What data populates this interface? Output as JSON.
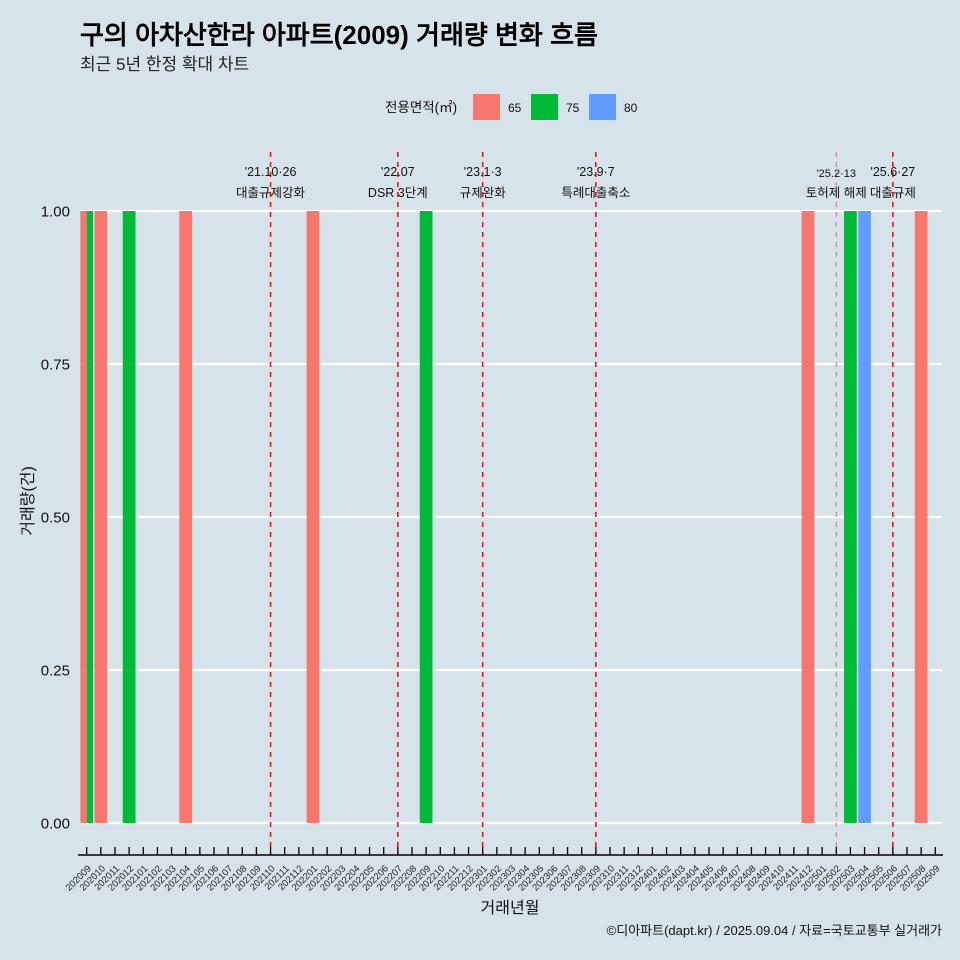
{
  "chart_data": {
    "type": "bar",
    "title": "구의 아차산한라 아파트(2009) 거래량 변화 흐름",
    "subtitle": "최근 5년 한정 확대 차트",
    "xlabel": "거래년월",
    "ylabel": "거래량(건)",
    "caption": "©디아파트(dapt.kr) / 2025.09.04 / 자료=국토교통부 실거래가",
    "legend_title": "전용면적(㎡)",
    "legend_position": "top",
    "grid": "horizontal",
    "ylim": [
      0,
      1
    ],
    "yticks": [
      0,
      0.25,
      0.5,
      0.75,
      1
    ],
    "ytick_labels": [
      "0.00",
      "0.25",
      "0.50",
      "0.75",
      "1.00"
    ],
    "categories": [
      "202009",
      "202010",
      "202011",
      "202012",
      "202101",
      "202102",
      "202103",
      "202104",
      "202105",
      "202106",
      "202107",
      "202108",
      "202109",
      "202110",
      "202111",
      "202112",
      "202201",
      "202202",
      "202203",
      "202204",
      "202205",
      "202206",
      "202207",
      "202208",
      "202209",
      "202210",
      "202211",
      "202212",
      "202301",
      "202302",
      "202303",
      "202304",
      "202305",
      "202306",
      "202307",
      "202308",
      "202309",
      "202310",
      "202311",
      "202312",
      "202401",
      "202402",
      "202403",
      "202404",
      "202405",
      "202406",
      "202407",
      "202408",
      "202409",
      "202410",
      "202411",
      "202412",
      "202501",
      "202502",
      "202503",
      "202504",
      "202505",
      "202506",
      "202507",
      "202508",
      "202509"
    ],
    "series": [
      {
        "name": "65",
        "color": "#F8766D",
        "points": [
          {
            "x": "202009",
            "y": 1
          },
          {
            "x": "202010",
            "y": 1
          },
          {
            "x": "202104",
            "y": 1
          },
          {
            "x": "202201",
            "y": 1
          },
          {
            "x": "202412",
            "y": 1
          },
          {
            "x": "202508",
            "y": 1
          }
        ]
      },
      {
        "name": "75",
        "color": "#00BA38",
        "points": [
          {
            "x": "202009",
            "y": 1
          },
          {
            "x": "202012",
            "y": 1
          },
          {
            "x": "202209",
            "y": 1
          },
          {
            "x": "202503",
            "y": 1
          }
        ]
      },
      {
        "name": "80",
        "color": "#619CFF",
        "points": [
          {
            "x": "202504",
            "y": 1
          }
        ]
      }
    ],
    "annotations": [
      {
        "x": "202110",
        "date": "'21.10·26",
        "label": "대출규제강화",
        "faint": false
      },
      {
        "x": "202207",
        "date": "'22.07",
        "label": "DSR 3단계",
        "faint": false
      },
      {
        "x": "202301",
        "date": "'23.1·3",
        "label": "규제완화",
        "faint": false
      },
      {
        "x": "202309",
        "date": "'23.9·7",
        "label": "특례대출축소",
        "faint": false
      },
      {
        "x": "202502",
        "date": "'25.2·13",
        "label": "토허제 해제",
        "faint": true
      },
      {
        "x": "202506",
        "date": "'25.6·27",
        "label": "대출규제",
        "faint": false
      }
    ],
    "annotation_color": "#e3191c"
  }
}
